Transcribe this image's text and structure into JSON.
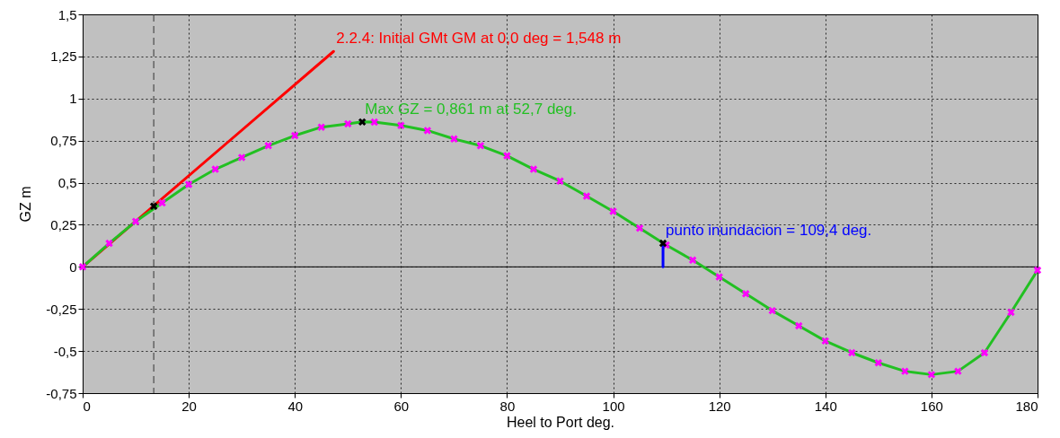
{
  "chart_data": {
    "type": "line",
    "xlabel": "Heel to Port   deg.",
    "ylabel": "GZ  m",
    "xlim": [
      0,
      180
    ],
    "xticks": [
      0,
      20,
      40,
      60,
      80,
      100,
      120,
      140,
      160,
      180
    ],
    "ylim": [
      -0.75,
      1.5
    ],
    "yticks": [
      {
        "value": -0.75,
        "label": "-0,75"
      },
      {
        "value": -0.5,
        "label": "-0,5"
      },
      {
        "value": -0.25,
        "label": "-0,25"
      },
      0,
      {
        "value": 0.25,
        "label": "0,25"
      },
      {
        "value": 0.5,
        "label": "0,5"
      },
      {
        "value": 0.75,
        "label": "0,75"
      },
      1,
      {
        "value": 1.25,
        "label": "1,25"
      },
      {
        "value": 1.5,
        "label": "1,5"
      }
    ],
    "grid": true,
    "series": [
      {
        "type": "line",
        "color": "#ff0000",
        "marker": "none",
        "x": [
          0,
          47.3
        ],
        "values": [
          0,
          1.28
        ]
      },
      {
        "type": "line",
        "color": "#22c022",
        "marker": "none",
        "x": [
          0,
          5,
          10,
          15,
          20,
          25,
          30,
          35,
          40,
          45,
          50,
          52.7,
          55,
          60,
          65,
          70,
          75,
          80,
          85,
          90,
          95,
          100,
          105,
          110,
          115,
          120,
          125,
          130,
          135,
          140,
          145,
          150,
          155,
          160,
          165,
          170,
          175,
          180
        ],
        "values": [
          0,
          0.14,
          0.27,
          0.38,
          0.49,
          0.58,
          0.65,
          0.72,
          0.78,
          0.83,
          0.85,
          0.861,
          0.86,
          0.84,
          0.81,
          0.76,
          0.72,
          0.66,
          0.58,
          0.51,
          0.42,
          0.33,
          0.23,
          0.13,
          0.04,
          -0.06,
          -0.16,
          -0.26,
          -0.35,
          -0.44,
          -0.51,
          -0.57,
          -0.62,
          -0.64,
          -0.62,
          -0.51,
          -0.27,
          -0.02
        ]
      },
      {
        "type": "scatter",
        "color": "#ff00ff",
        "marker": "cross",
        "x": [
          0,
          5,
          10,
          15,
          20,
          25,
          30,
          35,
          40,
          45,
          50,
          55,
          60,
          65,
          70,
          75,
          80,
          85,
          90,
          95,
          100,
          105,
          110,
          115,
          120,
          125,
          130,
          135,
          140,
          145,
          150,
          155,
          160,
          165,
          170,
          175,
          180
        ],
        "values": [
          0,
          0.14,
          0.27,
          0.38,
          0.49,
          0.58,
          0.65,
          0.72,
          0.78,
          0.83,
          0.85,
          0.86,
          0.84,
          0.81,
          0.76,
          0.72,
          0.66,
          0.58,
          0.51,
          0.42,
          0.33,
          0.23,
          0.13,
          0.04,
          -0.06,
          -0.16,
          -0.26,
          -0.35,
          -0.44,
          -0.51,
          -0.57,
          -0.62,
          -0.64,
          -0.62,
          -0.51,
          -0.27,
          -0.02
        ]
      },
      {
        "type": "line",
        "color": "#0000ff",
        "marker": "none",
        "x": [
          109.4,
          109.4
        ],
        "values": [
          0,
          0.14
        ]
      },
      {
        "type": "scatter",
        "color": "#000000",
        "marker": "cross",
        "x": [
          13.4,
          52.7,
          109.4
        ],
        "values": [
          0.36,
          0.861,
          0.14
        ]
      }
    ],
    "ref_lines": [
      {
        "axis": "y",
        "value": 0,
        "color": "#000000",
        "line_style": "solid"
      },
      {
        "axis": "x",
        "value": 13.4,
        "color": "#333333",
        "line_style": "dashed"
      }
    ],
    "annotations": [
      {
        "text": "2.2.4: Initial GMt GM at 0,0 deg = 1,548 m",
        "x": 47.3,
        "y": 1.28
      },
      {
        "text": "Max GZ = 0,861 m at 52,7 deg.",
        "x": 52.7,
        "y": 0.861
      },
      {
        "text": "punto inundacion = 109,4 deg.",
        "x": 109.4,
        "y": 0.14
      }
    ]
  }
}
